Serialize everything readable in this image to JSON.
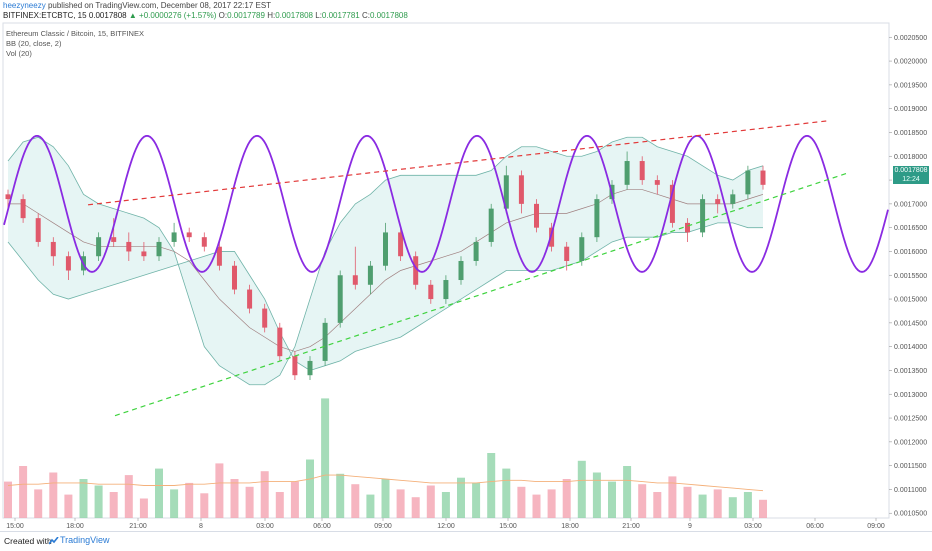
{
  "header": {
    "author": "heezyneezy",
    "published": "published on TradingView.com, December 08, 2017 22:17 EST",
    "symbol": "BITFINEX:ETCBTC, 15",
    "last": "0.0017808",
    "change": "+0.0000276 (+1.57%)",
    "open_label": "O:",
    "open": "0.0017789",
    "high_label": "H:",
    "high": "0.0017808",
    "low_label": "L:",
    "low": "0.0017781",
    "close_label": "C:",
    "close": "0.0017808"
  },
  "legend": {
    "title": "Ethereum Classic / Bitcoin, 15, BITFINEX",
    "bb": "BB (20, close, 2)",
    "vol": "Vol (20)"
  },
  "price_marker": {
    "price": "0.0017808",
    "countdown": "12:24"
  },
  "footer": {
    "created_with": "Created with",
    "brand": "TradingView"
  },
  "colors": {
    "up": "#4f9e6f",
    "down": "#e0596b",
    "bb_fill": "#e6f5f4",
    "bb_band": "#6fb3a8",
    "bb_basis": "#a08080",
    "sine": "#8a2be2",
    "resistance": "#e23a3a",
    "support": "#3fd33f",
    "vol_up": "#8fd3a8",
    "vol_down": "#f4a3b0",
    "vol_ma": "#f4b07a"
  },
  "chart_data": {
    "type": "candlestick",
    "y_axis_ticks": [
      "0.0020500",
      "0.0020000",
      "0.0019500",
      "0.0019000",
      "0.0018500",
      "0.0018000",
      "0.0017500",
      "0.0017000",
      "0.0016500",
      "0.0016000",
      "0.0015500",
      "0.0015000",
      "0.0014500",
      "0.0014000",
      "0.0013500",
      "0.0013000",
      "0.0012500",
      "0.0012000",
      "0.0011500",
      "0.0011000",
      "0.0010500"
    ],
    "x_axis_ticks": [
      "15:00",
      "18:00",
      "21:00",
      "8",
      "03:00",
      "06:00",
      "09:00",
      "12:00",
      "15:00",
      "18:00",
      "21:00",
      "9",
      "03:00",
      "06:00",
      "09:00"
    ],
    "ylim": [
      0.00104,
      0.00208
    ],
    "candles": [
      [
        0.00172,
        0.00173,
        0.00169,
        0.00171
      ],
      [
        0.00171,
        0.00172,
        0.00166,
        0.00167
      ],
      [
        0.00167,
        0.00168,
        0.00161,
        0.00162
      ],
      [
        0.00162,
        0.00163,
        0.00157,
        0.00159
      ],
      [
        0.00159,
        0.0016,
        0.00154,
        0.00156
      ],
      [
        0.00156,
        0.0016,
        0.00155,
        0.00159
      ],
      [
        0.00159,
        0.00164,
        0.00158,
        0.00163
      ],
      [
        0.00163,
        0.00167,
        0.00161,
        0.00162
      ],
      [
        0.00162,
        0.00164,
        0.00158,
        0.0016
      ],
      [
        0.0016,
        0.00162,
        0.00158,
        0.00159
      ],
      [
        0.00159,
        0.00163,
        0.00158,
        0.00162
      ],
      [
        0.00162,
        0.00166,
        0.00161,
        0.00164
      ],
      [
        0.00164,
        0.00165,
        0.00162,
        0.00163
      ],
      [
        0.00163,
        0.00164,
        0.0016,
        0.00161
      ],
      [
        0.00161,
        0.00162,
        0.00156,
        0.00157
      ],
      [
        0.00157,
        0.00158,
        0.00151,
        0.00152
      ],
      [
        0.00152,
        0.00153,
        0.00147,
        0.00148
      ],
      [
        0.00148,
        0.00149,
        0.00143,
        0.00144
      ],
      [
        0.00144,
        0.00145,
        0.00137,
        0.00138
      ],
      [
        0.00138,
        0.00139,
        0.00133,
        0.00134
      ],
      [
        0.00134,
        0.00138,
        0.00133,
        0.00137
      ],
      [
        0.00137,
        0.00146,
        0.00136,
        0.00145
      ],
      [
        0.00145,
        0.00156,
        0.00144,
        0.00155
      ],
      [
        0.00155,
        0.00161,
        0.00152,
        0.00153
      ],
      [
        0.00153,
        0.00158,
        0.00151,
        0.00157
      ],
      [
        0.00157,
        0.00166,
        0.00156,
        0.00164
      ],
      [
        0.00164,
        0.00165,
        0.00158,
        0.00159
      ],
      [
        0.00159,
        0.0016,
        0.00152,
        0.00153
      ],
      [
        0.00153,
        0.00154,
        0.00149,
        0.0015
      ],
      [
        0.0015,
        0.00155,
        0.00149,
        0.00154
      ],
      [
        0.00154,
        0.00159,
        0.00153,
        0.00158
      ],
      [
        0.00158,
        0.00163,
        0.00157,
        0.00162
      ],
      [
        0.00162,
        0.0017,
        0.00161,
        0.00169
      ],
      [
        0.00169,
        0.00178,
        0.00168,
        0.00176
      ],
      [
        0.00176,
        0.00177,
        0.00168,
        0.0017
      ],
      [
        0.0017,
        0.00171,
        0.00164,
        0.00165
      ],
      [
        0.00165,
        0.00166,
        0.0016,
        0.00161
      ],
      [
        0.00161,
        0.00162,
        0.00156,
        0.00158
      ],
      [
        0.00158,
        0.00164,
        0.00157,
        0.00163
      ],
      [
        0.00163,
        0.00172,
        0.00162,
        0.00171
      ],
      [
        0.00171,
        0.00175,
        0.0017,
        0.00174
      ],
      [
        0.00174,
        0.00181,
        0.00173,
        0.00179
      ],
      [
        0.00179,
        0.0018,
        0.00174,
        0.00175
      ],
      [
        0.00175,
        0.00176,
        0.00172,
        0.00174
      ],
      [
        0.00174,
        0.00175,
        0.00165,
        0.00166
      ],
      [
        0.00166,
        0.00167,
        0.00162,
        0.00164
      ],
      [
        0.00164,
        0.00172,
        0.00163,
        0.00171
      ],
      [
        0.00171,
        0.00172,
        0.00168,
        0.0017
      ],
      [
        0.0017,
        0.00173,
        0.00169,
        0.00172
      ],
      [
        0.00172,
        0.00178,
        0.00171,
        0.00177
      ],
      [
        0.00177,
        0.00178,
        0.00173,
        0.00174
      ]
    ],
    "bb_upper": [
      0.00179,
      0.00183,
      0.00184,
      0.00182,
      0.00178,
      0.00172,
      0.0017,
      0.00169,
      0.00168,
      0.00167,
      0.00165,
      0.0016,
      0.0015,
      0.0014,
      0.00136,
      0.00134,
      0.00132,
      0.00132,
      0.00134,
      0.0014,
      0.0015,
      0.0016,
      0.00166,
      0.0017,
      0.00172,
      0.00175,
      0.00176,
      0.00176,
      0.00176,
      0.00176,
      0.00176,
      0.00176,
      0.00177,
      0.0018,
      0.00182,
      0.00182,
      0.00181,
      0.0018,
      0.0018,
      0.00181,
      0.00183,
      0.00184,
      0.00184,
      0.00182,
      0.00181,
      0.0018,
      0.00178,
      0.00176,
      0.00175,
      0.00177,
      0.00178
    ],
    "bb_lower": [
      0.00162,
      0.00158,
      0.00154,
      0.00151,
      0.0015,
      0.00151,
      0.00152,
      0.00153,
      0.00154,
      0.00155,
      0.00156,
      0.00157,
      0.00158,
      0.00159,
      0.0016,
      0.0016,
      0.00155,
      0.0015,
      0.00143,
      0.00137,
      0.00135,
      0.00136,
      0.00137,
      0.00139,
      0.0014,
      0.00141,
      0.00142,
      0.00144,
      0.00146,
      0.00148,
      0.0015,
      0.00152,
      0.00154,
      0.00156,
      0.00156,
      0.00156,
      0.00156,
      0.00157,
      0.00158,
      0.0016,
      0.00162,
      0.00163,
      0.00163,
      0.00163,
      0.00164,
      0.00164,
      0.00165,
      0.00166,
      0.00166,
      0.00165,
      0.00165
    ],
    "bb_basis": [
      0.0017,
      0.0017,
      0.00168,
      0.00166,
      0.00164,
      0.00162,
      0.00161,
      0.00161,
      0.00161,
      0.00161,
      0.00161,
      0.0016,
      0.00158,
      0.00154,
      0.0015,
      0.00147,
      0.00144,
      0.00142,
      0.0014,
      0.00139,
      0.0014,
      0.00142,
      0.00145,
      0.00148,
      0.00151,
      0.00154,
      0.00156,
      0.00157,
      0.00158,
      0.00159,
      0.0016,
      0.00162,
      0.00164,
      0.00166,
      0.00167,
      0.00168,
      0.00168,
      0.00168,
      0.00169,
      0.0017,
      0.00172,
      0.00173,
      0.00173,
      0.00172,
      0.00171,
      0.0017,
      0.0017,
      0.0017,
      0.0017,
      0.00171,
      0.00172
    ],
    "volume": [
      0.28,
      0.4,
      0.22,
      0.35,
      0.18,
      0.3,
      0.25,
      0.2,
      0.33,
      0.15,
      0.38,
      0.22,
      0.27,
      0.19,
      0.42,
      0.3,
      0.24,
      0.36,
      0.2,
      0.28,
      0.45,
      0.92,
      0.34,
      0.26,
      0.18,
      0.3,
      0.22,
      0.16,
      0.25,
      0.2,
      0.31,
      0.27,
      0.5,
      0.38,
      0.24,
      0.18,
      0.22,
      0.3,
      0.44,
      0.35,
      0.28,
      0.4,
      0.26,
      0.2,
      0.32,
      0.24,
      0.18,
      0.22,
      0.16,
      0.2,
      0.14
    ],
    "volume_ma": [
      0.25,
      0.26,
      0.26,
      0.27,
      0.27,
      0.27,
      0.26,
      0.26,
      0.26,
      0.25,
      0.25,
      0.25,
      0.26,
      0.26,
      0.27,
      0.27,
      0.27,
      0.28,
      0.28,
      0.28,
      0.3,
      0.33,
      0.33,
      0.32,
      0.31,
      0.3,
      0.29,
      0.28,
      0.27,
      0.27,
      0.27,
      0.27,
      0.28,
      0.29,
      0.29,
      0.28,
      0.28,
      0.28,
      0.29,
      0.29,
      0.29,
      0.29,
      0.28,
      0.27,
      0.27,
      0.26,
      0.25,
      0.24,
      0.23,
      0.22,
      0.21
    ]
  }
}
